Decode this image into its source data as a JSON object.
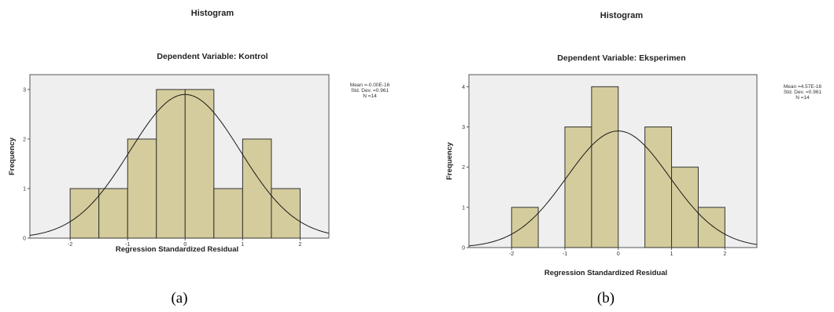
{
  "chart_data": [
    {
      "type": "bar",
      "title": "Histogram",
      "subtitle": "Dependent Variable: Kontrol",
      "xlabel": "Regression Standardized Residual",
      "ylabel": "Frequency",
      "xlim": [
        -2.7,
        2.5
      ],
      "ylim": [
        0,
        3.3
      ],
      "xticks": [
        {
          "value": -2,
          "label": "-2"
        },
        {
          "value": -1,
          "label": "-1"
        },
        {
          "value": 0,
          "label": "0"
        },
        {
          "value": 1,
          "label": "1"
        },
        {
          "value": 2,
          "label": "2"
        }
      ],
      "yticks": [
        {
          "value": 0,
          "label": "0"
        },
        {
          "value": 1,
          "label": "1"
        },
        {
          "value": 2,
          "label": "2"
        },
        {
          "value": 3,
          "label": "3"
        }
      ],
      "bins": [
        {
          "x0": -2.0,
          "x1": -1.5,
          "count": 1
        },
        {
          "x0": -1.5,
          "x1": -1.0,
          "count": 1
        },
        {
          "x0": -1.0,
          "x1": -0.5,
          "count": 2
        },
        {
          "x0": -0.5,
          "x1": 0.0,
          "count": 3
        },
        {
          "x0": 0.0,
          "x1": 0.5,
          "count": 3
        },
        {
          "x0": 0.5,
          "x1": 1.0,
          "count": 1
        },
        {
          "x0": 1.0,
          "x1": 1.5,
          "count": 2
        },
        {
          "x0": 1.5,
          "x1": 2.0,
          "count": 1
        }
      ],
      "normal_curve": {
        "mean": 0,
        "std": 0.961,
        "peak": 2.9
      },
      "stats": [
        "Mean =-0.00E-16",
        "Std. Dev. =0.961",
        "N =14"
      ],
      "caption": "(a)",
      "grid": false,
      "background_color": "#efefef",
      "bar_color": "#d4cc9c"
    },
    {
      "type": "bar",
      "title": "Histogram",
      "subtitle": "Dependent Variable: Eksperimen",
      "xlabel": "Regression Standardized Residual",
      "ylabel": "Frequency",
      "xlim": [
        -2.8,
        2.6
      ],
      "ylim": [
        0,
        4.3
      ],
      "xticks": [
        {
          "value": -2,
          "label": "-2"
        },
        {
          "value": -1,
          "label": "-1"
        },
        {
          "value": 0,
          "label": "0"
        },
        {
          "value": 1,
          "label": "1"
        },
        {
          "value": 2,
          "label": "2"
        }
      ],
      "yticks": [
        {
          "value": 0,
          "label": "0"
        },
        {
          "value": 1,
          "label": "1"
        },
        {
          "value": 2,
          "label": "2"
        },
        {
          "value": 3,
          "label": "3"
        },
        {
          "value": 4,
          "label": "4"
        }
      ],
      "bins": [
        {
          "x0": -2.0,
          "x1": -1.5,
          "count": 1
        },
        {
          "x0": -1.0,
          "x1": -0.5,
          "count": 3
        },
        {
          "x0": -0.5,
          "x1": 0.0,
          "count": 4
        },
        {
          "x0": 0.5,
          "x1": 1.0,
          "count": 3
        },
        {
          "x0": 1.0,
          "x1": 1.5,
          "count": 2
        },
        {
          "x0": 1.5,
          "x1": 2.0,
          "count": 1
        }
      ],
      "normal_curve": {
        "mean": 0,
        "std": 0.961,
        "peak": 2.9
      },
      "stats": [
        "Mean =4.57E-16",
        "Std. Dev. =0.961",
        "N =14"
      ],
      "caption": "(b)",
      "grid": false,
      "background_color": "#efefef",
      "bar_color": "#d4cc9c"
    }
  ]
}
